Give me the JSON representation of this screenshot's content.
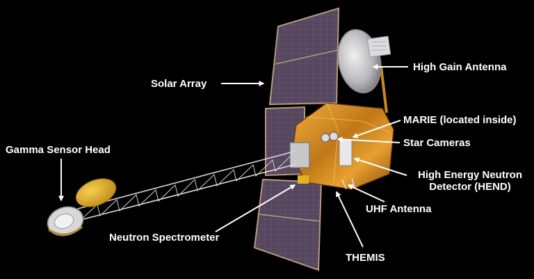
{
  "labels": {
    "solar_array": "Solar Array",
    "high_gain_antenna": "High Gain Antenna",
    "marie": "MARIE (located inside)",
    "star_cameras": "Star Cameras",
    "hend_line1": "High Energy Neutron",
    "hend_line2": "Detector (HEND)",
    "uhf_antenna": "UHF Antenna",
    "gamma_sensor_head": "Gamma Sensor Head",
    "neutron_spectrometer": "Neutron Spectrometer",
    "themis": "THEMIS"
  },
  "colors": {
    "background": "#000000",
    "label_text": "#ffffff",
    "arrow": "#ffffff",
    "solar_panel": "#5a4a5e",
    "panel_frame": "#b89a7a",
    "gold_foil": "#d4921e",
    "boom": "#d8d8d8",
    "dish": "#c8c8cc",
    "gamma_shade": "#e6b62c"
  }
}
